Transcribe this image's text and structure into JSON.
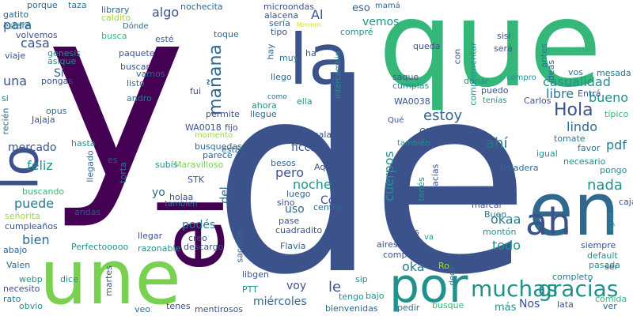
{
  "words": [
    {
      "text": "de",
      "color": "#3b528b"
    },
    {
      "text": "y",
      "color": "#440154"
    },
    {
      "text": "que",
      "color": "#35b779"
    },
    {
      "text": "une",
      "color": "#7ad151"
    },
    {
      "text": "el",
      "color": "#440154"
    },
    {
      "text": "en",
      "color": "#31688e"
    },
    {
      "text": "la",
      "color": "#3b528b"
    },
    {
      "text": "lo",
      "color": "#3b528b"
    },
    {
      "text": "por",
      "color": "#21918c"
    },
    {
      "text": "muchas",
      "color": "#21918c"
    },
    {
      "text": "gracias",
      "color": "#21918c"
    },
    {
      "text": "ah",
      "color": "#3b528b"
    },
    {
      "text": "Hola",
      "color": "#3b528b"
    },
    {
      "text": "mañana",
      "color": "#31688e"
    },
    {
      "text": "casualidad",
      "color": "#21918c"
    },
    {
      "text": "bueno",
      "color": "#21918c"
    },
    {
      "text": "libre",
      "color": "#2a788e"
    },
    {
      "text": "lindo",
      "color": "#31688e"
    },
    {
      "text": "estoy",
      "color": "#31688e"
    },
    {
      "text": "ahí",
      "color": "#2a788e"
    },
    {
      "text": "te",
      "color": "#3b528b"
    },
    {
      "text": "nada",
      "color": "#21918c"
    },
    {
      "text": "cuerpos",
      "color": "#21918c"
    },
    {
      "text": "okaa",
      "color": "#2a788e"
    },
    {
      "text": "todo",
      "color": "#21918c"
    },
    {
      "text": "oka",
      "color": "#2a788e"
    },
    {
      "text": "pdf",
      "color": "#2a788e"
    },
    {
      "text": "ficción",
      "color": "#3b528b"
    },
    {
      "text": "noche",
      "color": "#21918c"
    },
    {
      "text": "pero",
      "color": "#3b528b"
    },
    {
      "text": "Cómo",
      "color": "#3b528b"
    },
    {
      "text": "uso",
      "color": "#31688e"
    },
    {
      "text": "puede",
      "color": "#2a788e"
    },
    {
      "text": "bien",
      "color": "#31688e"
    },
    {
      "text": "feliz",
      "color": "#21918c"
    },
    {
      "text": "mercado",
      "color": "#3b528b"
    },
    {
      "text": "una",
      "color": "#3b528b"
    },
    {
      "text": "casa",
      "color": "#3b528b"
    },
    {
      "text": "para",
      "color": "#31688e"
    },
    {
      "text": "algo",
      "color": "#3b528b"
    },
    {
      "text": "Al",
      "color": "#3b528b"
    },
    {
      "text": "vemos",
      "color": "#21918c"
    },
    {
      "text": "eso",
      "color": "#31688e"
    },
    {
      "text": "podés",
      "color": "#2a788e"
    },
    {
      "text": "yo",
      "color": "#31688e"
    },
    {
      "text": "del",
      "color": "#31688e"
    },
    {
      "text": "voy",
      "color": "#3b528b"
    },
    {
      "text": "le",
      "color": "#3b528b"
    },
    {
      "text": "miércoles",
      "color": "#31688e"
    },
    {
      "text": "más",
      "color": "#21918c"
    },
    {
      "text": "Nos",
      "color": "#3b528b"
    },
    {
      "text": "Sí",
      "color": "#31688e"
    },
    {
      "text": "opus",
      "color": "#31688e"
    },
    {
      "text": "Jajaja",
      "color": "#3b528b"
    },
    {
      "text": "porque",
      "color": "#31688e"
    },
    {
      "text": "taza",
      "color": "#2a788e"
    },
    {
      "text": "library",
      "color": "#31688e"
    },
    {
      "text": "nochecita",
      "color": "#31688e"
    },
    {
      "text": "microondas",
      "color": "#3b528b"
    },
    {
      "text": "mamá",
      "color": "#31688e"
    },
    {
      "text": "gatito",
      "color": "#31688e"
    },
    {
      "text": "caldito",
      "color": "#a0da39"
    },
    {
      "text": "Dónde",
      "color": "#31688e"
    },
    {
      "text": "alacena",
      "color": "#3b528b"
    },
    {
      "text": "sería",
      "color": "#31688e"
    },
    {
      "text": "tipo",
      "color": "#3b528b"
    },
    {
      "text": "Mmmm",
      "color": "#d0e11c"
    },
    {
      "text": "compré",
      "color": "#21918c"
    },
    {
      "text": "queda",
      "color": "#3b528b"
    },
    {
      "text": "complementar",
      "color": "#21918c"
    },
    {
      "text": "sisi",
      "color": "#3b528b"
    },
    {
      "text": "será",
      "color": "#3b528b"
    },
    {
      "text": "antes",
      "color": "#2a788e"
    },
    {
      "text": "mesada",
      "color": "#2a788e"
    },
    {
      "text": "estaré",
      "color": "#31688e"
    },
    {
      "text": "volvemos",
      "color": "#3b528b"
    },
    {
      "text": "viaje",
      "color": "#3b528b"
    },
    {
      "text": "genesis",
      "color": "#21918c"
    },
    {
      "text": "asique",
      "color": "#21918c"
    },
    {
      "text": "pongas",
      "color": "#3b528b"
    },
    {
      "text": "busca",
      "color": "#35b779"
    },
    {
      "text": "esté",
      "color": "#31688e"
    },
    {
      "text": "toque",
      "color": "#31688e"
    },
    {
      "text": "paquete",
      "color": "#3b528b"
    },
    {
      "text": "buscar",
      "color": "#3b528b"
    },
    {
      "text": "vamos",
      "color": "#31688e"
    },
    {
      "text": "listo",
      "color": "#31688e"
    },
    {
      "text": "fui",
      "color": "#3b528b"
    },
    {
      "text": "andro",
      "color": "#2a788e"
    },
    {
      "text": "si",
      "color": "#2a788e"
    },
    {
      "text": "hay",
      "color": "#31688e"
    },
    {
      "text": "muy",
      "color": "#2a788e"
    },
    {
      "text": "ha",
      "color": "#3b528b"
    },
    {
      "text": "llego",
      "color": "#31688e"
    },
    {
      "text": "como",
      "color": "#31688e"
    },
    {
      "text": "ahora",
      "color": "#21918c"
    },
    {
      "text": "ella",
      "color": "#21918c"
    },
    {
      "text": "intercambio",
      "color": "#21918c"
    },
    {
      "text": "con",
      "color": "#3b528b"
    },
    {
      "text": "saque",
      "color": "#3b528b"
    },
    {
      "text": "cumplas",
      "color": "#21918c"
    },
    {
      "text": "donar",
      "color": "#21918c"
    },
    {
      "text": "puedo",
      "color": "#3b528b"
    },
    {
      "text": "compro",
      "color": "#21918c"
    },
    {
      "text": "ideas",
      "color": "#31688e"
    },
    {
      "text": "vos",
      "color": "#2a788e"
    },
    {
      "text": "Entrá",
      "color": "#3b528b"
    },
    {
      "text": "WA0038",
      "color": "#3b528b"
    },
    {
      "text": "tenías",
      "color": "#21918c"
    },
    {
      "text": "Carlos",
      "color": "#3b528b"
    },
    {
      "text": "típico",
      "color": "#35b779"
    },
    {
      "text": "permite",
      "color": "#3b528b"
    },
    {
      "text": "llegue",
      "color": "#31688e"
    },
    {
      "text": "WA0018",
      "color": "#3b528b"
    },
    {
      "text": "fijo",
      "color": "#3b528b"
    },
    {
      "text": "momento",
      "color": "#a0da39"
    },
    {
      "text": "estás",
      "color": "#31688e"
    },
    {
      "text": "parece",
      "color": "#31688e"
    },
    {
      "text": "busquedas",
      "color": "#31688e"
    },
    {
      "text": "Pasala",
      "color": "#3b528b"
    },
    {
      "text": "Ohhh",
      "color": "#3b528b"
    },
    {
      "text": "Qué",
      "color": "#3b528b"
    },
    {
      "text": "también",
      "color": "#21918c"
    },
    {
      "text": "tomate",
      "color": "#2a788e"
    },
    {
      "text": "favor",
      "color": "#2a788e"
    },
    {
      "text": "necesario",
      "color": "#21918c"
    },
    {
      "text": "pongo",
      "color": "#21918c"
    },
    {
      "text": "igual",
      "color": "#21918c"
    },
    {
      "text": "heladera",
      "color": "#31688e"
    },
    {
      "text": "recién",
      "color": "#31688e"
    },
    {
      "text": "hasta",
      "color": "#21918c"
    },
    {
      "text": "llegado",
      "color": "#31688e"
    },
    {
      "text": "es",
      "color": "#3b528b"
    },
    {
      "text": "torta",
      "color": "#2a788e"
    },
    {
      "text": "subís",
      "color": "#21918c"
    },
    {
      "text": "Maravilloso",
      "color": "#7ad151"
    },
    {
      "text": "besos",
      "color": "#31688e"
    },
    {
      "text": "Aquí",
      "color": "#3b528b"
    },
    {
      "text": "STK",
      "color": "#3b528b"
    },
    {
      "text": "holaa",
      "color": "#3b528b"
    },
    {
      "text": "tambien",
      "color": "#2a788e"
    },
    {
      "text": "buscando",
      "color": "#35b779"
    },
    {
      "text": "andas",
      "color": "#3b528b"
    },
    {
      "text": "señorita",
      "color": "#a0da39"
    },
    {
      "text": "cumpleaños",
      "color": "#3b528b"
    },
    {
      "text": "abajo",
      "color": "#31688e"
    },
    {
      "text": "Valen",
      "color": "#31688e"
    },
    {
      "text": "webp",
      "color": "#21918c"
    },
    {
      "text": "necesito",
      "color": "#3b528b"
    },
    {
      "text": "rato",
      "color": "#2a788e"
    },
    {
      "text": "obvio",
      "color": "#21918c"
    },
    {
      "text": "luego",
      "color": "#31688e"
    },
    {
      "text": "sino",
      "color": "#3b528b"
    },
    {
      "text": "pase",
      "color": "#3b528b"
    },
    {
      "text": "centro",
      "color": "#31688e"
    },
    {
      "text": "cuadradito",
      "color": "#3b528b"
    },
    {
      "text": "Holis",
      "color": "#3b528b"
    },
    {
      "text": "tenés",
      "color": "#21918c"
    },
    {
      "text": "gracias",
      "color": "#3b528b"
    },
    {
      "text": "caja",
      "color": "#3b528b"
    },
    {
      "text": "agua",
      "color": "#21918c"
    },
    {
      "text": "marcar",
      "color": "#3b528b"
    },
    {
      "text": "Buen",
      "color": "#2a788e"
    },
    {
      "text": "montón",
      "color": "#21918c"
    },
    {
      "text": "libros",
      "color": "#3b528b"
    },
    {
      "text": "va",
      "color": "#21918c"
    },
    {
      "text": "siempre",
      "color": "#3b528b"
    },
    {
      "text": "default",
      "color": "#21918c"
    },
    {
      "text": "llegar",
      "color": "#3b528b"
    },
    {
      "text": "creo",
      "color": "#3b528b"
    },
    {
      "text": "descargo",
      "color": "#3b528b"
    },
    {
      "text": "razonable",
      "color": "#21918c"
    },
    {
      "text": "Perfectooooo",
      "color": "#21918c"
    },
    {
      "text": "sacaste",
      "color": "#31688e"
    },
    {
      "text": "Flavia",
      "color": "#31688e"
    },
    {
      "text": "aires",
      "color": "#3b528b"
    },
    {
      "text": "comprarle",
      "color": "#3b528b"
    },
    {
      "text": "Ro",
      "color": "#a0da39"
    },
    {
      "text": "decir",
      "color": "#2a788e"
    },
    {
      "text": "pasada",
      "color": "#21918c"
    },
    {
      "text": "completo",
      "color": "#2a788e"
    },
    {
      "text": "ser",
      "color": "#3b528b"
    },
    {
      "text": "comida",
      "color": "#35b779"
    },
    {
      "text": "lata",
      "color": "#3b528b"
    },
    {
      "text": "ver",
      "color": "#31688e"
    },
    {
      "text": "libgen",
      "color": "#3b528b"
    },
    {
      "text": "PTT",
      "color": "#21918c"
    },
    {
      "text": "dice",
      "color": "#21918c"
    },
    {
      "text": "martes",
      "color": "#3b528b"
    },
    {
      "text": "veo",
      "color": "#31688e"
    },
    {
      "text": "tenes",
      "color": "#3b528b"
    },
    {
      "text": "mentirosos",
      "color": "#3b528b"
    },
    {
      "text": "bienvenidas",
      "color": "#31688e"
    },
    {
      "text": "pedir",
      "color": "#31688e"
    },
    {
      "text": "busque",
      "color": "#35b779"
    },
    {
      "text": "tengo",
      "color": "#21918c"
    },
    {
      "text": "bajo",
      "color": "#21918c"
    },
    {
      "text": "sip",
      "color": "#21918c"
    }
  ]
}
